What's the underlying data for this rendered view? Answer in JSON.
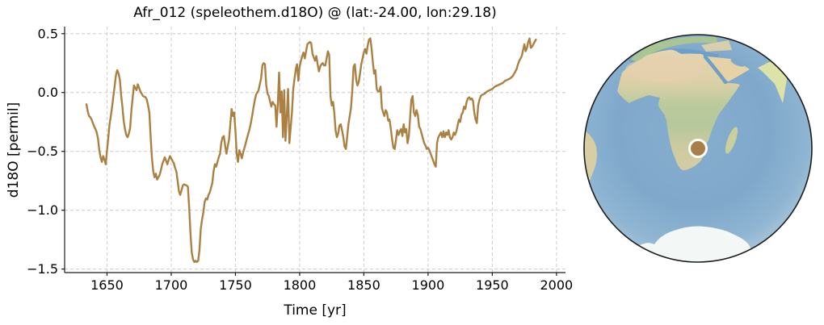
{
  "figure": {
    "title": "Afr_012 (speleothem.d18O) @ (lat:-24.00, lon:29.18)"
  },
  "chart_data": {
    "type": "line",
    "title": "Afr_012 (speleothem.d18O) @ (lat:-24.00, lon:29.18)",
    "xlabel": "Time [yr]",
    "ylabel": "d18O [permil]",
    "series_name": "Afr_012 speleothem d18O",
    "line_color": "#ab8143",
    "grid_color": "#cccccc",
    "spine_color": "#1a1a1a",
    "grid": true,
    "legend": false,
    "xlim": [
      1617,
      2007
    ],
    "ylim": [
      -1.53,
      0.56
    ],
    "xticks": [
      1650,
      1700,
      1750,
      1800,
      1850,
      1900,
      1950,
      2000
    ],
    "xtick_labels": [
      "1650",
      "1700",
      "1750",
      "1800",
      "1850",
      "1900",
      "1950",
      "2000"
    ],
    "yticks": [
      0.5,
      0.0,
      -0.5,
      -1.0,
      -1.5
    ],
    "ytick_labels": [
      "0.5",
      "0.0",
      "−0.5",
      "−1.0",
      "−1.5"
    ],
    "points": [
      [
        1634,
        -0.1
      ],
      [
        1635,
        -0.16
      ],
      [
        1636,
        -0.2
      ],
      [
        1637,
        -0.21
      ],
      [
        1638,
        -0.23
      ],
      [
        1639,
        -0.26
      ],
      [
        1640,
        -0.29
      ],
      [
        1641,
        -0.31
      ],
      [
        1642,
        -0.34
      ],
      [
        1643,
        -0.39
      ],
      [
        1644,
        -0.49
      ],
      [
        1645,
        -0.55
      ],
      [
        1646,
        -0.59
      ],
      [
        1647,
        -0.54
      ],
      [
        1648,
        -0.57
      ],
      [
        1649,
        -0.61
      ],
      [
        1650,
        -0.49
      ],
      [
        1651,
        -0.38
      ],
      [
        1652,
        -0.27
      ],
      [
        1653,
        -0.2
      ],
      [
        1654,
        -0.12
      ],
      [
        1655,
        -0.03
      ],
      [
        1656,
        0.06
      ],
      [
        1657,
        0.15
      ],
      [
        1658,
        0.19
      ],
      [
        1659,
        0.16
      ],
      [
        1660,
        0.11
      ],
      [
        1661,
        -0.02
      ],
      [
        1662,
        -0.12
      ],
      [
        1663,
        -0.24
      ],
      [
        1664,
        -0.31
      ],
      [
        1665,
        -0.36
      ],
      [
        1666,
        -0.38
      ],
      [
        1667,
        -0.35
      ],
      [
        1668,
        -0.3
      ],
      [
        1669,
        -0.15
      ],
      [
        1670,
        -0.04
      ],
      [
        1671,
        0.06
      ],
      [
        1672,
        0.04
      ],
      [
        1673,
        0.02
      ],
      [
        1674,
        0.07
      ],
      [
        1675,
        0.04
      ],
      [
        1676,
        0.01
      ],
      [
        1677,
        -0.01
      ],
      [
        1678,
        -0.03
      ],
      [
        1680,
        -0.04
      ],
      [
        1681,
        -0.06
      ],
      [
        1682,
        -0.11
      ],
      [
        1683,
        -0.17
      ],
      [
        1684,
        -0.38
      ],
      [
        1685,
        -0.56
      ],
      [
        1686,
        -0.67
      ],
      [
        1687,
        -0.72
      ],
      [
        1688,
        -0.69
      ],
      [
        1689,
        -0.74
      ],
      [
        1690,
        -0.72
      ],
      [
        1691,
        -0.7
      ],
      [
        1692,
        -0.66
      ],
      [
        1693,
        -0.61
      ],
      [
        1694,
        -0.58
      ],
      [
        1695,
        -0.55
      ],
      [
        1696,
        -0.58
      ],
      [
        1697,
        -0.61
      ],
      [
        1698,
        -0.57
      ],
      [
        1699,
        -0.54
      ],
      [
        1700,
        -0.56
      ],
      [
        1701,
        -0.58
      ],
      [
        1702,
        -0.6
      ],
      [
        1703,
        -0.64
      ],
      [
        1704,
        -0.67
      ],
      [
        1705,
        -0.75
      ],
      [
        1706,
        -0.84
      ],
      [
        1707,
        -0.87
      ],
      [
        1708,
        -0.83
      ],
      [
        1709,
        -0.79
      ],
      [
        1710,
        -0.78
      ],
      [
        1712,
        -0.79
      ],
      [
        1713,
        -0.8
      ],
      [
        1714,
        -0.98
      ],
      [
        1715,
        -1.2
      ],
      [
        1716,
        -1.36
      ],
      [
        1717,
        -1.42
      ],
      [
        1718,
        -1.44
      ],
      [
        1719,
        -1.43
      ],
      [
        1720,
        -1.44
      ],
      [
        1721,
        -1.43
      ],
      [
        1722,
        -1.34
      ],
      [
        1723,
        -1.16
      ],
      [
        1724,
        -1.08
      ],
      [
        1725,
        -1.02
      ],
      [
        1726,
        -0.93
      ],
      [
        1727,
        -0.9
      ],
      [
        1728,
        -0.91
      ],
      [
        1729,
        -0.87
      ],
      [
        1730,
        -0.85
      ],
      [
        1731,
        -0.81
      ],
      [
        1732,
        -0.77
      ],
      [
        1733,
        -0.67
      ],
      [
        1734,
        -0.61
      ],
      [
        1735,
        -0.63
      ],
      [
        1736,
        -0.59
      ],
      [
        1737,
        -0.55
      ],
      [
        1738,
        -0.52
      ],
      [
        1739,
        -0.43
      ],
      [
        1740,
        -0.38
      ],
      [
        1741,
        -0.37
      ],
      [
        1742,
        -0.45
      ],
      [
        1743,
        -0.52
      ],
      [
        1744,
        -0.46
      ],
      [
        1745,
        -0.4
      ],
      [
        1746,
        -0.27
      ],
      [
        1747,
        -0.14
      ],
      [
        1748,
        -0.2
      ],
      [
        1749,
        -0.17
      ],
      [
        1750,
        -0.32
      ],
      [
        1751,
        -0.52
      ],
      [
        1752,
        -0.59
      ],
      [
        1753,
        -0.49
      ],
      [
        1754,
        -0.52
      ],
      [
        1755,
        -0.56
      ],
      [
        1756,
        -0.51
      ],
      [
        1757,
        -0.47
      ],
      [
        1758,
        -0.43
      ],
      [
        1759,
        -0.39
      ],
      [
        1760,
        -0.35
      ],
      [
        1761,
        -0.31
      ],
      [
        1762,
        -0.26
      ],
      [
        1763,
        -0.2
      ],
      [
        1764,
        -0.13
      ],
      [
        1765,
        -0.07
      ],
      [
        1766,
        -0.02
      ],
      [
        1767,
        0.0
      ],
      [
        1768,
        0.02
      ],
      [
        1769,
        0.07
      ],
      [
        1770,
        0.12
      ],
      [
        1771,
        0.23
      ],
      [
        1772,
        0.25
      ],
      [
        1773,
        0.24
      ],
      [
        1774,
        0.06
      ],
      [
        1775,
        -0.01
      ],
      [
        1776,
        -0.03
      ],
      [
        1777,
        -0.08
      ],
      [
        1778,
        -0.12
      ],
      [
        1779,
        -0.08
      ],
      [
        1780,
        -0.1
      ],
      [
        1781,
        -0.11
      ],
      [
        1782,
        -0.29
      ],
      [
        1783,
        -0.1
      ],
      [
        1784,
        0.17
      ],
      [
        1785,
        -0.17
      ],
      [
        1786,
        0.01
      ],
      [
        1787,
        -0.38
      ],
      [
        1788,
        0.02
      ],
      [
        1789,
        -0.41
      ],
      [
        1790,
        -0.2
      ],
      [
        1791,
        0.03
      ],
      [
        1792,
        -0.43
      ],
      [
        1793,
        -0.3
      ],
      [
        1794,
        -0.17
      ],
      [
        1795,
        0.03
      ],
      [
        1796,
        0.12
      ],
      [
        1797,
        0.2
      ],
      [
        1798,
        0.24
      ],
      [
        1799,
        0.1
      ],
      [
        1800,
        0.22
      ],
      [
        1801,
        0.27
      ],
      [
        1802,
        0.31
      ],
      [
        1803,
        0.34
      ],
      [
        1804,
        0.29
      ],
      [
        1805,
        0.35
      ],
      [
        1806,
        0.41
      ],
      [
        1807,
        0.42
      ],
      [
        1808,
        0.43
      ],
      [
        1809,
        0.42
      ],
      [
        1810,
        0.33
      ],
      [
        1811,
        0.3
      ],
      [
        1812,
        0.27
      ],
      [
        1813,
        0.31
      ],
      [
        1814,
        0.24
      ],
      [
        1815,
        0.18
      ],
      [
        1816,
        0.22
      ],
      [
        1817,
        0.24
      ],
      [
        1818,
        0.25
      ],
      [
        1819,
        0.23
      ],
      [
        1820,
        0.23
      ],
      [
        1821,
        0.29
      ],
      [
        1822,
        0.35
      ],
      [
        1823,
        0.32
      ],
      [
        1824,
        -0.03
      ],
      [
        1825,
        -0.11
      ],
      [
        1826,
        -0.08
      ],
      [
        1827,
        -0.17
      ],
      [
        1828,
        -0.32
      ],
      [
        1829,
        -0.38
      ],
      [
        1830,
        -0.35
      ],
      [
        1831,
        -0.28
      ],
      [
        1832,
        -0.27
      ],
      [
        1833,
        -0.32
      ],
      [
        1834,
        -0.38
      ],
      [
        1835,
        -0.46
      ],
      [
        1836,
        -0.48
      ],
      [
        1837,
        -0.38
      ],
      [
        1838,
        -0.27
      ],
      [
        1839,
        -0.2
      ],
      [
        1840,
        -0.13
      ],
      [
        1841,
        0.02
      ],
      [
        1842,
        0.22
      ],
      [
        1843,
        0.24
      ],
      [
        1844,
        0.11
      ],
      [
        1845,
        0.06
      ],
      [
        1846,
        0.09
      ],
      [
        1847,
        0.16
      ],
      [
        1848,
        0.24
      ],
      [
        1849,
        0.29
      ],
      [
        1850,
        0.34
      ],
      [
        1851,
        0.37
      ],
      [
        1852,
        0.33
      ],
      [
        1853,
        0.4
      ],
      [
        1854,
        0.45
      ],
      [
        1855,
        0.46
      ],
      [
        1856,
        0.38
      ],
      [
        1857,
        0.26
      ],
      [
        1858,
        0.16
      ],
      [
        1859,
        0.19
      ],
      [
        1860,
        0.03
      ],
      [
        1861,
        0.01
      ],
      [
        1862,
        0.01
      ],
      [
        1863,
        0.05
      ],
      [
        1864,
        -0.13
      ],
      [
        1865,
        -0.17
      ],
      [
        1866,
        -0.2
      ],
      [
        1867,
        -0.15
      ],
      [
        1868,
        -0.17
      ],
      [
        1869,
        -0.24
      ],
      [
        1870,
        -0.23
      ],
      [
        1871,
        -0.31
      ],
      [
        1872,
        -0.4
      ],
      [
        1873,
        -0.47
      ],
      [
        1874,
        -0.48
      ],
      [
        1875,
        -0.4
      ],
      [
        1876,
        -0.32
      ],
      [
        1877,
        -0.36
      ],
      [
        1878,
        -0.33
      ],
      [
        1879,
        -0.31
      ],
      [
        1880,
        -0.37
      ],
      [
        1881,
        -0.27
      ],
      [
        1882,
        -0.34
      ],
      [
        1883,
        -0.31
      ],
      [
        1884,
        -0.43
      ],
      [
        1885,
        -0.37
      ],
      [
        1886,
        -0.22
      ],
      [
        1887,
        -0.06
      ],
      [
        1888,
        -0.03
      ],
      [
        1889,
        -0.17
      ],
      [
        1890,
        -0.2
      ],
      [
        1891,
        -0.15
      ],
      [
        1892,
        -0.19
      ],
      [
        1893,
        -0.29
      ],
      [
        1894,
        -0.31
      ],
      [
        1895,
        -0.35
      ],
      [
        1896,
        -0.39
      ],
      [
        1897,
        -0.43
      ],
      [
        1898,
        -0.45
      ],
      [
        1899,
        -0.48
      ],
      [
        1900,
        -0.47
      ],
      [
        1901,
        -0.49
      ],
      [
        1902,
        -0.52
      ],
      [
        1903,
        -0.55
      ],
      [
        1904,
        -0.58
      ],
      [
        1905,
        -0.61
      ],
      [
        1906,
        -0.63
      ],
      [
        1907,
        -0.43
      ],
      [
        1908,
        -0.38
      ],
      [
        1909,
        -0.36
      ],
      [
        1910,
        -0.34
      ],
      [
        1911,
        -0.38
      ],
      [
        1912,
        -0.33
      ],
      [
        1913,
        -0.38
      ],
      [
        1914,
        -0.34
      ],
      [
        1915,
        -0.36
      ],
      [
        1916,
        -0.32
      ],
      [
        1917,
        -0.38
      ],
      [
        1918,
        -0.4
      ],
      [
        1919,
        -0.38
      ],
      [
        1920,
        -0.34
      ],
      [
        1921,
        -0.36
      ],
      [
        1922,
        -0.33
      ],
      [
        1923,
        -0.28
      ],
      [
        1924,
        -0.23
      ],
      [
        1925,
        -0.25
      ],
      [
        1926,
        -0.19
      ],
      [
        1927,
        -0.17
      ],
      [
        1928,
        -0.12
      ],
      [
        1929,
        -0.14
      ],
      [
        1930,
        -0.08
      ],
      [
        1931,
        -0.05
      ],
      [
        1932,
        -0.04
      ],
      [
        1933,
        -0.06
      ],
      [
        1934,
        -0.05
      ],
      [
        1935,
        -0.07
      ],
      [
        1936,
        -0.17
      ],
      [
        1937,
        -0.23
      ],
      [
        1938,
        -0.26
      ],
      [
        1939,
        -0.11
      ],
      [
        1940,
        -0.06
      ],
      [
        1941,
        -0.03
      ],
      [
        1942,
        -0.02
      ],
      [
        1944,
        -0.01
      ],
      [
        1946,
        0.01
      ],
      [
        1948,
        0.02
      ],
      [
        1950,
        0.03
      ],
      [
        1952,
        0.05
      ],
      [
        1954,
        0.06
      ],
      [
        1956,
        0.07
      ],
      [
        1958,
        0.08
      ],
      [
        1960,
        0.1
      ],
      [
        1962,
        0.11
      ],
      [
        1964,
        0.12
      ],
      [
        1966,
        0.14
      ],
      [
        1967,
        0.16
      ],
      [
        1968,
        0.18
      ],
      [
        1969,
        0.2
      ],
      [
        1970,
        0.24
      ],
      [
        1971,
        0.27
      ],
      [
        1972,
        0.29
      ],
      [
        1973,
        0.31
      ],
      [
        1974,
        0.36
      ],
      [
        1975,
        0.41
      ],
      [
        1976,
        0.35
      ],
      [
        1977,
        0.38
      ],
      [
        1978,
        0.43
      ],
      [
        1979,
        0.46
      ],
      [
        1980,
        0.38
      ],
      [
        1981,
        0.39
      ],
      [
        1982,
        0.41
      ],
      [
        1983,
        0.43
      ],
      [
        1984,
        0.45
      ]
    ]
  },
  "map": {
    "site": {
      "lat": -24.0,
      "lon": 29.18
    },
    "marker_color": "#a9804a",
    "marker_edge_color": "#ffffff",
    "ocean_color": "#7fa8cb",
    "land_color": "#ddd0a8",
    "ice_color": "#f3f7f5"
  }
}
